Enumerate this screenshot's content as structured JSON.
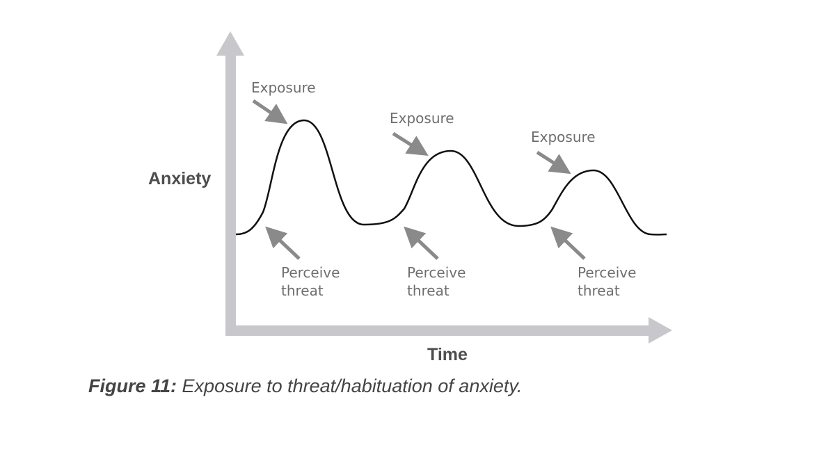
{
  "diagram": {
    "y_axis_label": "Anxiety",
    "x_axis_label": "Time",
    "peaks": [
      {
        "label": "Exposure"
      },
      {
        "label": "Exposure"
      },
      {
        "label": "Exposure"
      }
    ],
    "troughs": [
      {
        "label_line1": "Perceive",
        "label_line2": "threat"
      },
      {
        "label_line1": "Perceive",
        "label_line2": "threat"
      },
      {
        "label_line1": "Perceive",
        "label_line2": "threat"
      }
    ],
    "colors": {
      "axis": "#c7c7cc",
      "curve": "#111111",
      "arrow": "#8a8a8a",
      "text": "#6e6e6e"
    }
  },
  "caption": {
    "lead": "Figure 11:",
    "text": "Exposure to threat/habituation of anxiety."
  }
}
